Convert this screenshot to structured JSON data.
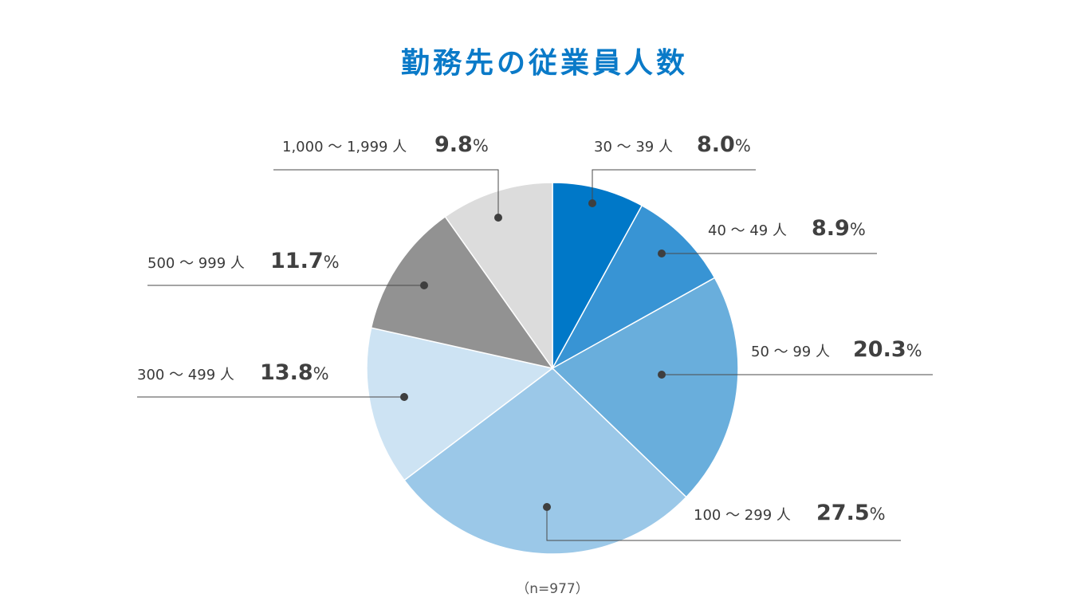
{
  "chart_data": {
    "type": "pie",
    "title": "勤務先の従業員人数",
    "note": "（n=977）",
    "unit": "%",
    "start_angle_deg": 0,
    "direction": "clockwise",
    "slices": [
      {
        "label": "30 ～ 39 人",
        "value": 8.0,
        "value_text": "8.0",
        "color": "#0078c8"
      },
      {
        "label": "40 ～ 49 人",
        "value": 8.9,
        "value_text": "8.9",
        "color": "#3894d4"
      },
      {
        "label": "50 ～ 99 人",
        "value": 20.3,
        "value_text": "20.3",
        "color": "#69aedc"
      },
      {
        "label": "100 ～ 299 人",
        "value": 27.5,
        "value_text": "27.5",
        "color": "#9bc8e8"
      },
      {
        "label": "300 ～ 499 人",
        "value": 13.8,
        "value_text": "13.8",
        "color": "#cde3f3"
      },
      {
        "label": "500 ～ 999 人",
        "value": 11.7,
        "value_text": "11.7",
        "color": "#929292"
      },
      {
        "label": "1,000 ～ 1,999 人",
        "value": 9.8,
        "value_text": "9.8",
        "color": "#dcdcdc"
      }
    ]
  }
}
